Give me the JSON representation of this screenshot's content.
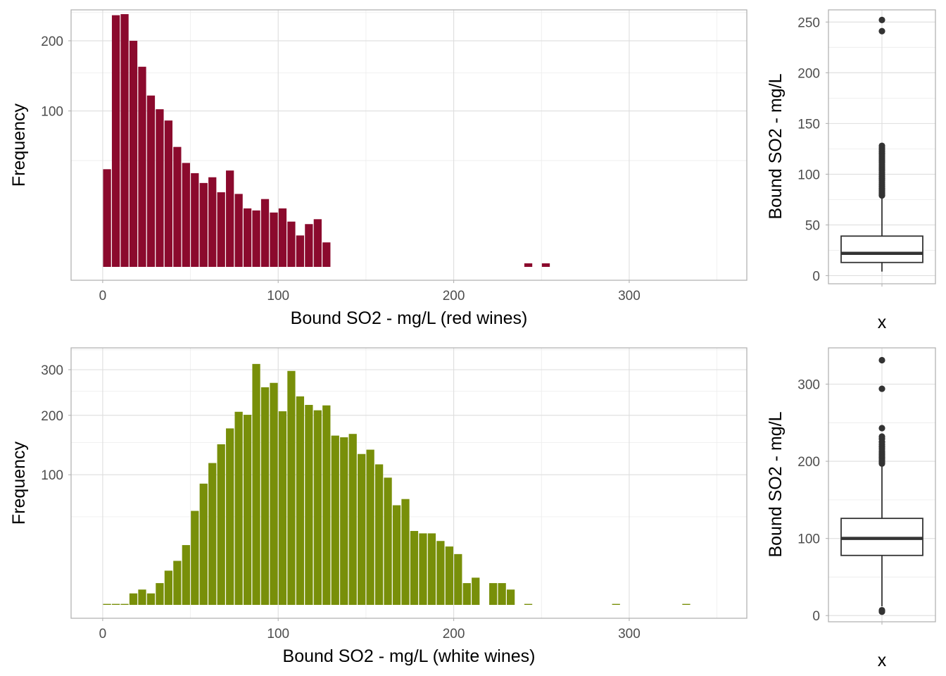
{
  "colors": {
    "red_bar": "#8b0a2d",
    "white_bar": "#788f09",
    "box_line": "#333333"
  },
  "chart_data": [
    {
      "type": "bar",
      "subtype": "histogram",
      "xlabel": "Bound SO2 - mg/L (red wines)",
      "ylabel": "Frequency",
      "y_scale": "sqrt",
      "xlim": [
        -18,
        367
      ],
      "ylim": [
        0,
        255
      ],
      "x_ticks": [
        0,
        100,
        200,
        300
      ],
      "y_ticks": [
        100,
        200
      ],
      "bin_width": 5,
      "bar_color": "#8b0a2d",
      "x": [
        2.5,
        7.5,
        12.5,
        17.5,
        22.5,
        27.5,
        32.5,
        37.5,
        42.5,
        47.5,
        52.5,
        57.5,
        62.5,
        67.5,
        72.5,
        77.5,
        82.5,
        87.5,
        92.5,
        97.5,
        102.5,
        107.5,
        112.5,
        117.5,
        122.5,
        127.5,
        242.5,
        252.5
      ],
      "values": [
        43,
        245,
        247,
        200,
        159,
        119,
        102,
        89,
        62,
        48,
        40,
        33,
        37,
        27,
        42,
        26,
        18,
        17,
        23,
        16,
        18,
        12,
        7,
        11,
        13,
        5,
        1,
        1
      ]
    },
    {
      "type": "box",
      "ylabel": "Bound SO2 - mg/L",
      "xlabel": "x",
      "ylim": [
        -8,
        262
      ],
      "y_ticks": [
        0,
        50,
        100,
        150,
        200,
        250
      ],
      "box": {
        "lower_whisker": 4,
        "q1": 13,
        "median": 22,
        "q3": 39,
        "upper_whisker": 78
      },
      "outliers": [
        79,
        80,
        81,
        82,
        83,
        84,
        85,
        86,
        88,
        90,
        92,
        94,
        96,
        98,
        100,
        102,
        104,
        106,
        108,
        110,
        112,
        114,
        116,
        118,
        120,
        122,
        124,
        126,
        128,
        241,
        252
      ]
    },
    {
      "type": "bar",
      "subtype": "histogram",
      "xlabel": "Bound SO2 - mg/L (white wines)",
      "ylabel": "Frequency",
      "y_scale": "sqrt",
      "xlim": [
        -18,
        367
      ],
      "ylim": [
        0,
        355
      ],
      "x_ticks": [
        0,
        100,
        200,
        300
      ],
      "y_ticks": [
        100,
        200,
        300
      ],
      "bin_width": 5,
      "bar_color": "#788f09",
      "x": [
        2.5,
        7.5,
        12.5,
        17.5,
        22.5,
        27.5,
        32.5,
        37.5,
        42.5,
        47.5,
        52.5,
        57.5,
        62.5,
        67.5,
        72.5,
        77.5,
        82.5,
        87.5,
        92.5,
        97.5,
        102.5,
        107.5,
        112.5,
        117.5,
        122.5,
        127.5,
        132.5,
        137.5,
        142.5,
        147.5,
        152.5,
        157.5,
        162.5,
        167.5,
        172.5,
        177.5,
        182.5,
        187.5,
        192.5,
        197.5,
        202.5,
        207.5,
        212.5,
        222.5,
        227.5,
        232.5,
        242.5,
        292.5,
        332.5
      ],
      "values": [
        1,
        1,
        1,
        3,
        4,
        3,
        6,
        11,
        16,
        26,
        56,
        88,
        117,
        147,
        175,
        207,
        201,
        314,
        259,
        269,
        208,
        297,
        239,
        221,
        210,
        220,
        162,
        159,
        165,
        131,
        138,
        115,
        96,
        62,
        69,
        37,
        35,
        35,
        29,
        25,
        20,
        6,
        8,
        6,
        6,
        4,
        1,
        1,
        1
      ]
    },
    {
      "type": "box",
      "ylabel": "Bound SO2 - mg/L",
      "xlabel": "x",
      "ylim": [
        -8,
        347
      ],
      "y_ticks": [
        0,
        100,
        200,
        300
      ],
      "box": {
        "lower_whisker": 12,
        "q1": 78,
        "median": 100,
        "q3": 126,
        "upper_whisker": 196
      },
      "outliers": [
        5,
        7,
        197,
        199,
        201,
        203,
        205,
        207,
        209,
        211,
        213,
        216,
        219,
        222,
        225,
        229,
        232,
        243,
        294,
        331
      ]
    }
  ]
}
